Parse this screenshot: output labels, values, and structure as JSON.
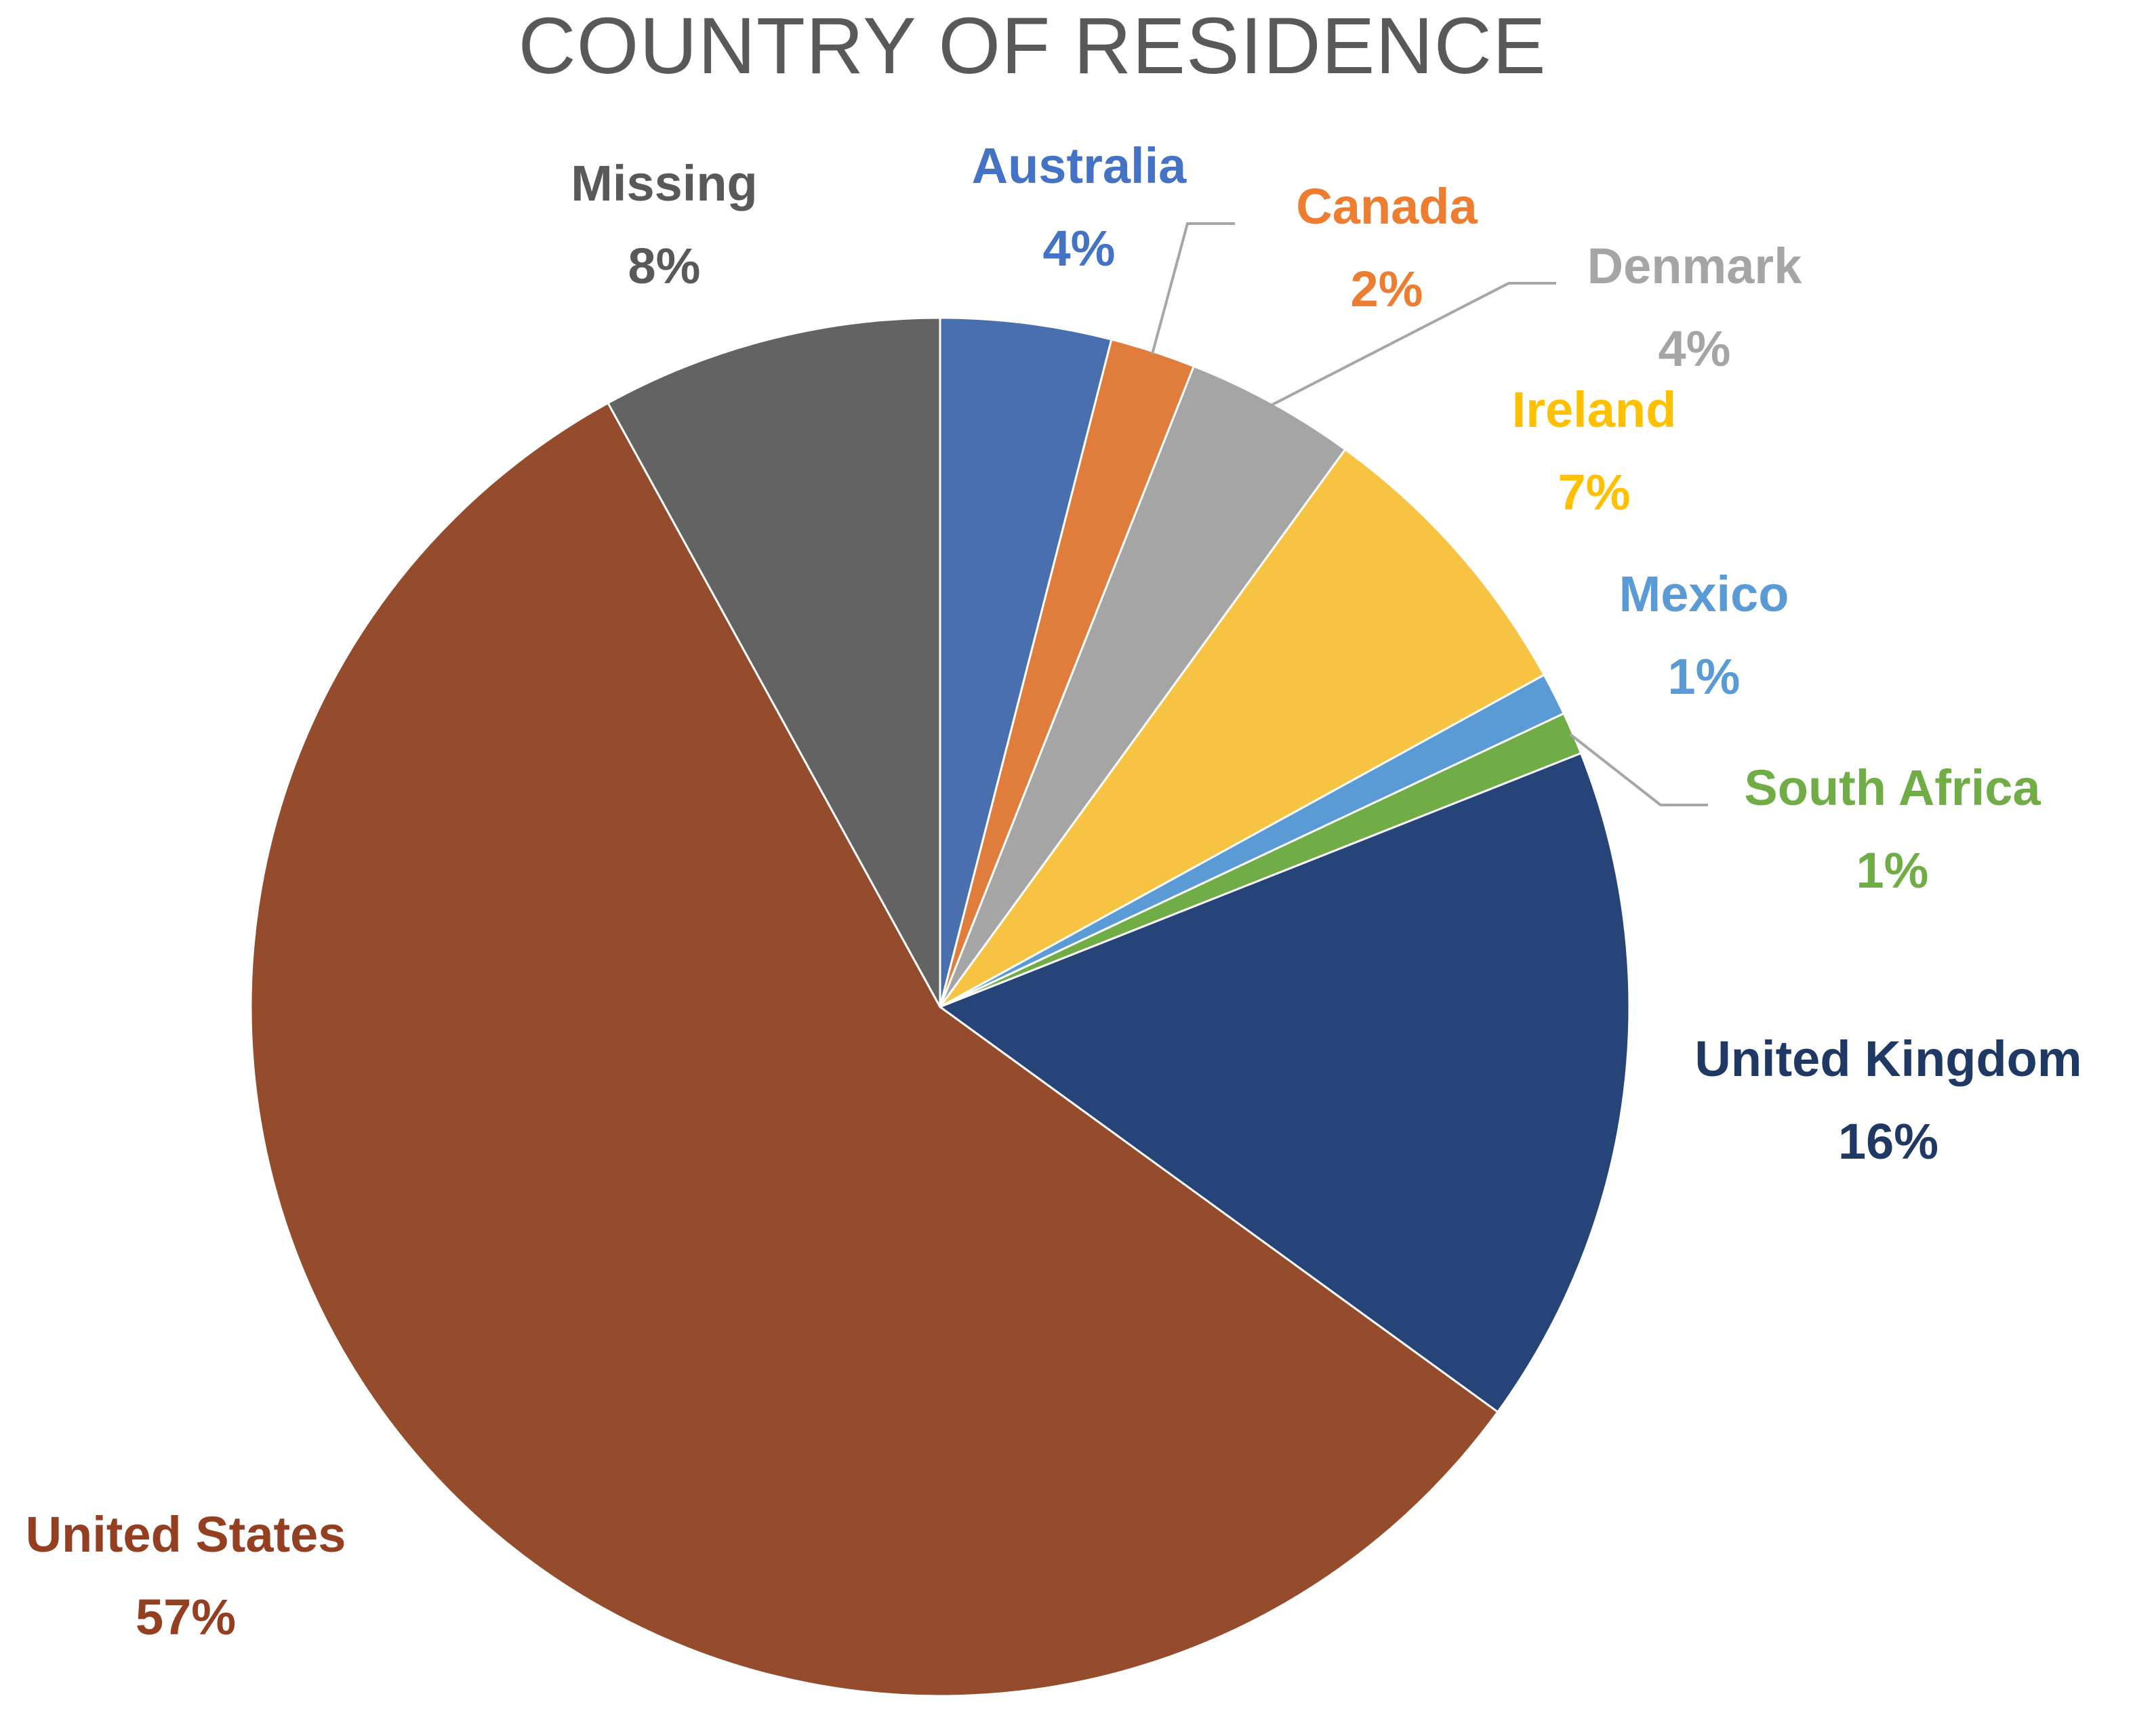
{
  "chart_data": {
    "type": "pie",
    "title": "COUNTRY OF RESIDENCE",
    "legend": "none",
    "slices": [
      {
        "label": "Australia",
        "value": 4,
        "display": "4%",
        "color": "#4A6FAE"
      },
      {
        "label": "Canada",
        "value": 2,
        "display": "2%",
        "color": "#E17D3C"
      },
      {
        "label": "Denmark",
        "value": 4,
        "display": "4%",
        "color": "#A5A5A5"
      },
      {
        "label": "Ireland",
        "value": 7,
        "display": "7%",
        "color": "#F6C342"
      },
      {
        "label": "Mexico",
        "value": 1,
        "display": "1%",
        "color": "#5B9BD5"
      },
      {
        "label": "South Africa",
        "value": 1,
        "display": "1%",
        "color": "#70AD47"
      },
      {
        "label": "United Kingdom",
        "value": 16,
        "display": "16%",
        "color": "#264478"
      },
      {
        "label": "United States",
        "value": 57,
        "display": "57%",
        "color": "#944C2C"
      },
      {
        "label": "Missing",
        "value": 8,
        "display": "8%",
        "color": "#636363"
      }
    ],
    "label_colors": {
      "Australia": "#4472C4",
      "Canada": "#ED7D31",
      "Denmark": "#A5A5A5",
      "Ireland": "#FFC000",
      "Mexico": "#5B9BD5",
      "South Africa": "#70AD47",
      "United Kingdom": "#1F3864",
      "United States": "#943F22",
      "Missing": "#595959"
    },
    "leader_line_color": "#A6A6A6"
  }
}
